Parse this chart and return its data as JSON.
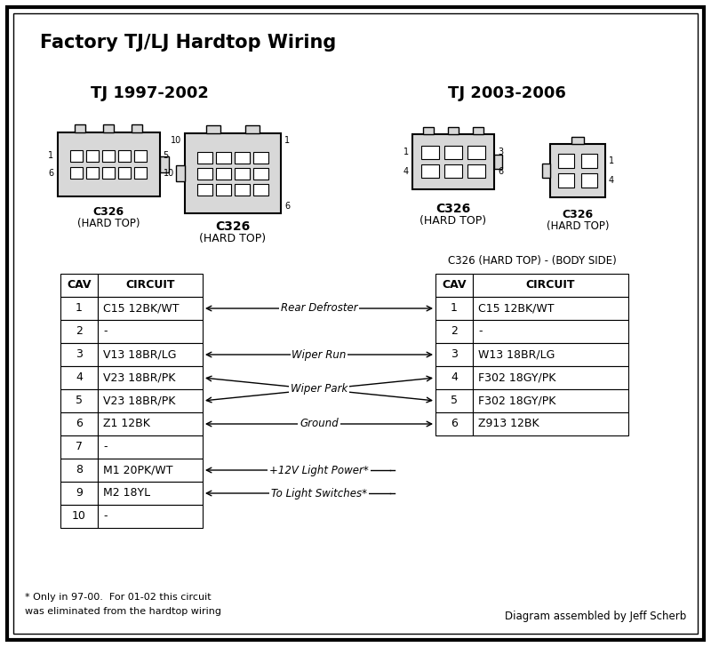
{
  "title": "Factory TJ/LJ Hardtop Wiring",
  "bg_color": "#ffffff",
  "left_section_title": "TJ 1997-2002",
  "right_section_title": "TJ 2003-2006",
  "right_table_title": "C326 (HARD TOP) - (BODY SIDE)",
  "left_table_data": [
    [
      "1",
      "C15 12BK/WT"
    ],
    [
      "2",
      "-"
    ],
    [
      "3",
      "V13 18BR/LG"
    ],
    [
      "4",
      "V23 18BR/PK"
    ],
    [
      "5",
      "V23 18BR/PK"
    ],
    [
      "6",
      "Z1 12BK"
    ],
    [
      "7",
      "-"
    ],
    [
      "8",
      "M1 20PK/WT"
    ],
    [
      "9",
      "M2 18YL"
    ],
    [
      "10",
      "-"
    ]
  ],
  "right_table_data": [
    [
      "1",
      "C15 12BK/WT"
    ],
    [
      "2",
      "-"
    ],
    [
      "3",
      "W13 18BR/LG"
    ],
    [
      "4",
      "F302 18GY/PK"
    ],
    [
      "5",
      "F302 18GY/PK"
    ],
    [
      "6",
      "Z913 12BK"
    ]
  ],
  "footnote1": "* Only in 97-00.  For 01-02 this circuit",
  "footnote2": "was eliminated from the hardtop wiring",
  "credit": "Diagram assembled by Jeff Scherb"
}
